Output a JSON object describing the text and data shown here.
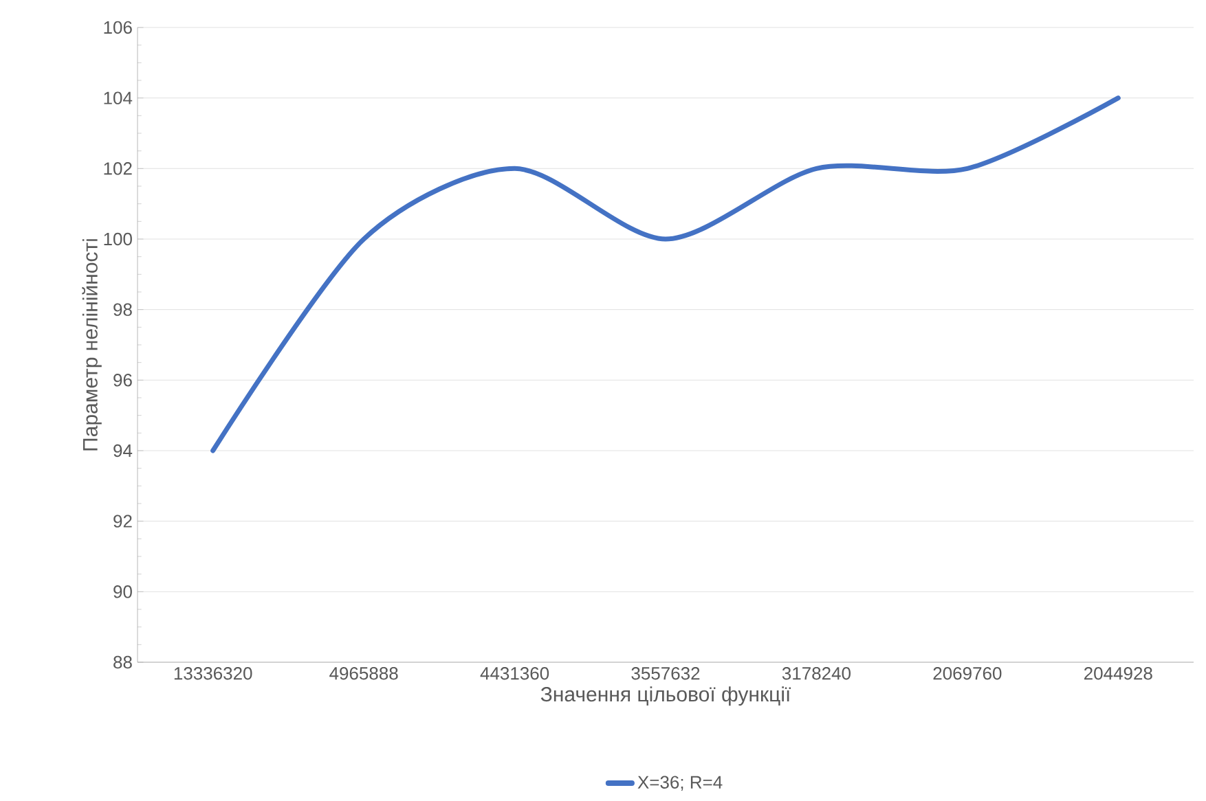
{
  "chart_data": {
    "type": "line",
    "xlabel": "Значення цільової функції",
    "ylabel": "Параметр нелінійності",
    "categories": [
      "13336320",
      "4965888",
      "4431360",
      "3557632",
      "3178240",
      "2069760",
      "2044928"
    ],
    "series": [
      {
        "name": "X=36; R=4",
        "color": "#4472c4",
        "values": [
          94,
          100,
          102,
          100,
          102,
          102,
          104
        ]
      }
    ],
    "ylim": [
      88,
      106
    ],
    "yticks": [
      88,
      90,
      92,
      94,
      96,
      98,
      100,
      102,
      104,
      106
    ],
    "grid": "y",
    "legend": "bottom",
    "marker": "none",
    "line_style": "solid"
  }
}
